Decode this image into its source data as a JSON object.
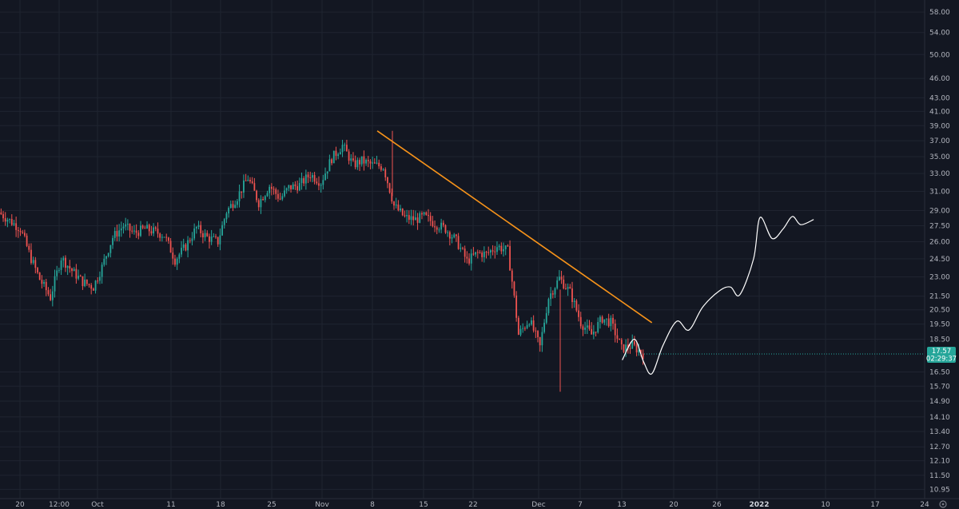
{
  "chart_data": {
    "type": "candlestick",
    "title": "",
    "price_scale": "log",
    "ylim": [
      10.6,
      60.5
    ],
    "grid": true,
    "y_tick_labels": [
      "58.00",
      "54.00",
      "50.00",
      "46.00",
      "43.00",
      "41.00",
      "39.00",
      "37.00",
      "35.00",
      "33.00",
      "31.00",
      "29.00",
      "27.50",
      "26.00",
      "24.50",
      "23.00",
      "21.50",
      "20.50",
      "19.50",
      "18.50",
      "17.57",
      "16.50",
      "15.70",
      "14.90",
      "14.10",
      "13.40",
      "12.70",
      "12.10",
      "11.50",
      "10.95"
    ],
    "x_tick_labels": [
      {
        "label": "20",
        "bold": false
      },
      {
        "label": "12:00",
        "bold": false
      },
      {
        "label": "Oct",
        "bold": false
      },
      {
        "label": "11",
        "bold": false
      },
      {
        "label": "18",
        "bold": false
      },
      {
        "label": "25",
        "bold": false
      },
      {
        "label": "Nov",
        "bold": false
      },
      {
        "label": "8",
        "bold": false
      },
      {
        "label": "15",
        "bold": false
      },
      {
        "label": "22",
        "bold": false
      },
      {
        "label": "Dec",
        "bold": false
      },
      {
        "label": "7",
        "bold": false
      },
      {
        "label": "13",
        "bold": false
      },
      {
        "label": "20",
        "bold": false
      },
      {
        "label": "26",
        "bold": false
      },
      {
        "label": "2022",
        "bold": true
      },
      {
        "label": "10",
        "bold": false
      },
      {
        "label": "17",
        "bold": false
      },
      {
        "label": "24",
        "bold": false
      }
    ],
    "last_price": {
      "value": 17.57,
      "label": "17.57",
      "countdown": "02:29:37"
    },
    "price_path": [
      [
        28.8,
        28.0
      ],
      [
        28.0,
        27.2
      ],
      [
        27.2,
        24.5
      ],
      [
        24.5,
        22.8
      ],
      [
        22.8,
        21.4
      ],
      [
        21.4,
        24.6
      ],
      [
        24.6,
        23.5
      ],
      [
        23.5,
        22.6
      ],
      [
        22.6,
        22.2
      ],
      [
        22.2,
        23.8
      ],
      [
        23.8,
        26.4
      ],
      [
        26.4,
        27.5
      ],
      [
        27.5,
        26.8
      ],
      [
        26.8,
        27.2
      ],
      [
        27.2,
        26.9
      ],
      [
        26.9,
        26.6
      ],
      [
        26.6,
        24.4
      ],
      [
        24.4,
        25.6
      ],
      [
        25.6,
        27.3
      ],
      [
        27.3,
        26.4
      ],
      [
        26.4,
        26.0
      ],
      [
        26.0,
        28.9
      ],
      [
        28.9,
        30.4
      ],
      [
        30.4,
        32.5
      ],
      [
        32.5,
        29.8
      ],
      [
        29.8,
        31.6
      ],
      [
        31.6,
        30.2
      ],
      [
        30.2,
        31.4
      ],
      [
        31.4,
        31.7
      ],
      [
        31.7,
        32.9
      ],
      [
        32.9,
        32.0
      ],
      [
        32.0,
        34.8
      ],
      [
        34.8,
        36.4
      ],
      [
        36.4,
        34.0
      ],
      [
        34.0,
        34.5
      ],
      [
        34.5,
        34.0
      ],
      [
        34.0,
        33.8
      ],
      [
        33.8,
        29.5
      ],
      [
        29.5,
        28.3
      ],
      [
        28.3,
        28.1
      ],
      [
        28.1,
        28.4
      ],
      [
        28.4,
        27.7
      ],
      [
        27.7,
        27.2
      ],
      [
        27.2,
        26.1
      ],
      [
        26.1,
        24.3
      ],
      [
        24.3,
        25.0
      ],
      [
        25.0,
        24.9
      ],
      [
        24.9,
        25.6
      ],
      [
        25.6,
        25.2
      ],
      [
        25.2,
        18.8
      ],
      [
        18.8,
        19.8
      ],
      [
        19.8,
        18.0
      ],
      [
        18.0,
        21.4
      ],
      [
        21.4,
        22.9
      ],
      [
        22.9,
        21.8
      ],
      [
        21.8,
        19.6
      ],
      [
        19.6,
        18.8
      ],
      [
        18.8,
        19.9
      ],
      [
        19.9,
        19.6
      ],
      [
        19.6,
        17.9
      ],
      [
        17.9,
        18.1
      ],
      [
        18.1,
        17.57
      ]
    ],
    "wicks": {
      "high": 38.3,
      "low": 15.4
    }
  },
  "annotations": {
    "trendline": {
      "color": "#f7931a",
      "from": {
        "t": 0.408,
        "price": 38.3
      },
      "to": {
        "t": 0.705,
        "price": 19.6
      }
    },
    "forecast_path": {
      "color": "#ffffff",
      "points": [
        [
          0.673,
          17.2
        ],
        [
          0.686,
          18.5
        ],
        [
          0.696,
          17.1
        ],
        [
          0.705,
          16.4
        ],
        [
          0.717,
          18.1
        ],
        [
          0.732,
          19.7
        ],
        [
          0.745,
          19.1
        ],
        [
          0.76,
          20.7
        ],
        [
          0.778,
          21.9
        ],
        [
          0.79,
          22.2
        ],
        [
          0.8,
          21.6
        ],
        [
          0.815,
          24.5
        ],
        [
          0.822,
          28.3
        ],
        [
          0.835,
          26.3
        ],
        [
          0.847,
          27.2
        ],
        [
          0.857,
          28.4
        ],
        [
          0.866,
          27.6
        ],
        [
          0.88,
          28.1
        ]
      ]
    }
  },
  "colors": {
    "background": "#131722",
    "grid": "#1f2430",
    "up": "#26a69a",
    "down": "#ef5350",
    "badge": "#26a69a",
    "axis_text": "#b2b5be"
  },
  "icons": {
    "settings": "gear-icon"
  }
}
